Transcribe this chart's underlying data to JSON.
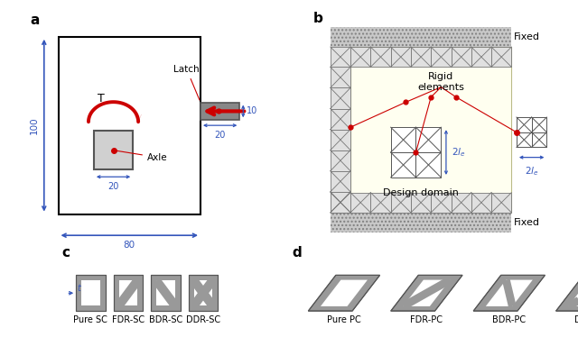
{
  "dim_blue": "#3355bb",
  "red_color": "#cc0000",
  "gray_fill": "#999999",
  "light_gray": "#cccccc",
  "truss_gray": "#aaaaaa",
  "sc_gray": "#999999",
  "panel_c_labels": [
    "Pure SC",
    "FDR-SC",
    "BDR-SC",
    "DDR-SC"
  ],
  "panel_d_labels": [
    "Pure PC",
    "FDR-PC",
    "BDR-PC",
    "DDR-PC"
  ]
}
